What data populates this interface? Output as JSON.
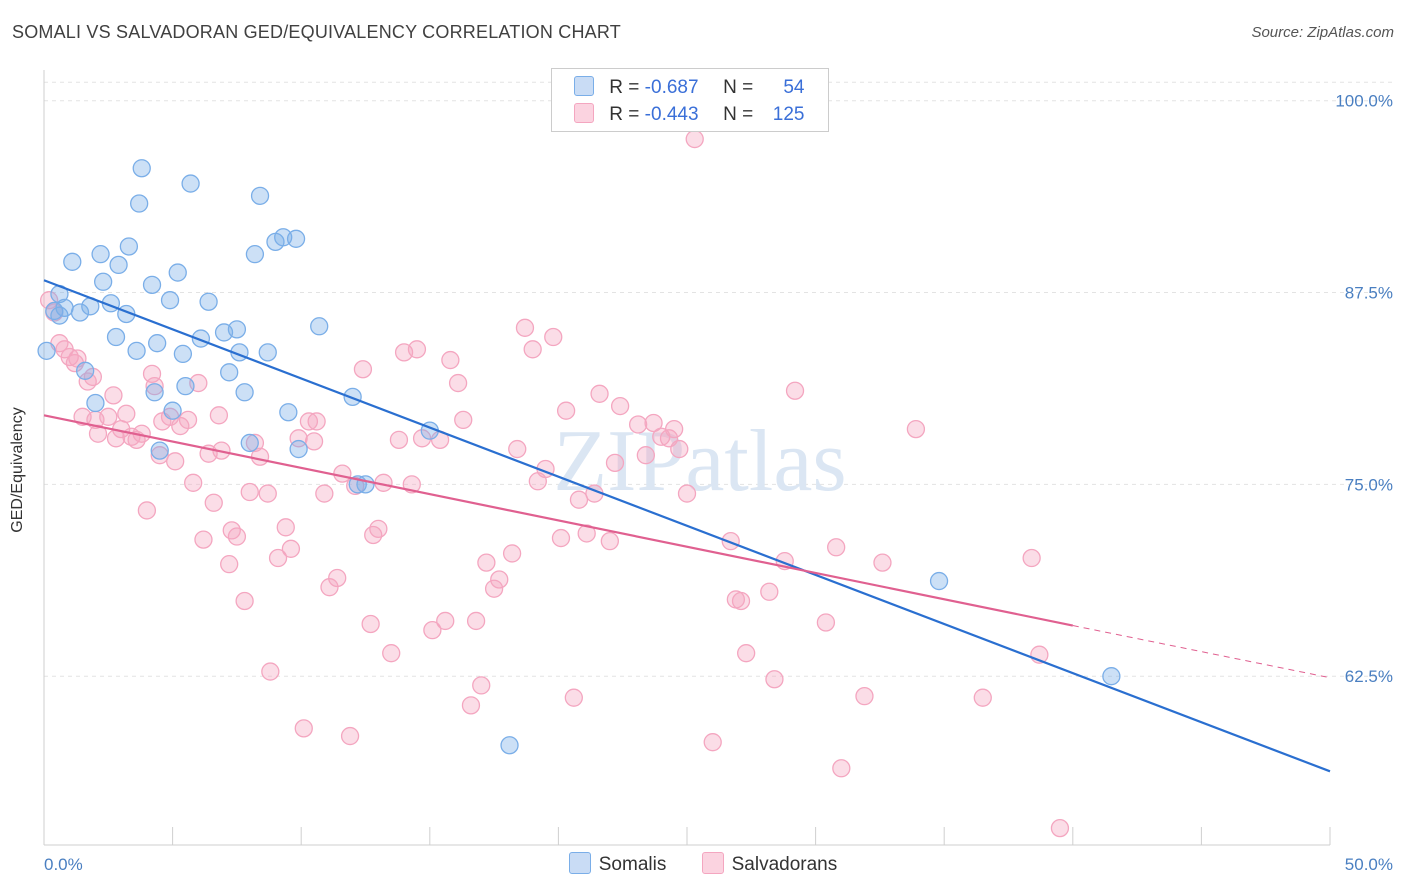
{
  "title": "SOMALI VS SALVADORAN GED/EQUIVALENCY CORRELATION CHART",
  "source": "Source: ZipAtlas.com",
  "watermark": "ZIPatlas",
  "colors": {
    "somalis": "#7aaee8",
    "somalis_line": "#2a6fd0",
    "salvadorans": "#f4a6c0",
    "salvadorans_line": "#e06090",
    "axis_text": "#4a7fc1"
  },
  "legend": [
    {
      "r_label": "R =",
      "r_value": "-0.687",
      "n_label": "N =",
      "n_value": "54"
    },
    {
      "r_label": "R =",
      "r_value": "-0.443",
      "n_label": "N =",
      "n_value": "125"
    }
  ],
  "chart_data": {
    "type": "scatter",
    "ylabel": "GED/Equivalency",
    "xlim": [
      0,
      50
    ],
    "ylim": [
      51.5,
      102
    ],
    "y_ticks": [
      {
        "value": 62.5,
        "label": "62.5%"
      },
      {
        "value": 75.0,
        "label": "75.0%"
      },
      {
        "value": 87.5,
        "label": "87.5%"
      },
      {
        "value": 100.0,
        "label": "100.0%"
      }
    ],
    "x_tick_labels": [
      {
        "value": 0,
        "label": "0.0%"
      },
      {
        "value": 50,
        "label": "50.0%"
      }
    ],
    "series": [
      {
        "name": "Somalis",
        "trend": {
          "x": [
            0,
            50
          ],
          "y": [
            88.3,
            56.3
          ]
        },
        "points": [
          [
            0.1,
            83.7
          ],
          [
            0.4,
            86.3
          ],
          [
            0.6,
            87.4
          ],
          [
            0.6,
            86.0
          ],
          [
            0.8,
            86.5
          ],
          [
            1.1,
            89.5
          ],
          [
            1.4,
            86.2
          ],
          [
            1.6,
            82.4
          ],
          [
            1.8,
            86.6
          ],
          [
            2.0,
            80.3
          ],
          [
            2.2,
            90.0
          ],
          [
            2.3,
            88.2
          ],
          [
            2.6,
            86.8
          ],
          [
            2.8,
            84.6
          ],
          [
            2.9,
            89.3
          ],
          [
            3.2,
            86.1
          ],
          [
            3.3,
            90.5
          ],
          [
            3.6,
            83.7
          ],
          [
            3.7,
            93.3
          ],
          [
            3.8,
            95.6
          ],
          [
            4.2,
            88.0
          ],
          [
            4.3,
            81.0
          ],
          [
            4.4,
            84.2
          ],
          [
            4.5,
            77.2
          ],
          [
            4.9,
            87.0
          ],
          [
            5.0,
            79.8
          ],
          [
            5.2,
            88.8
          ],
          [
            5.4,
            83.5
          ],
          [
            5.5,
            81.4
          ],
          [
            5.7,
            94.6
          ],
          [
            6.1,
            84.5
          ],
          [
            6.4,
            86.9
          ],
          [
            7.0,
            84.9
          ],
          [
            7.2,
            82.3
          ],
          [
            7.5,
            85.1
          ],
          [
            7.6,
            83.6
          ],
          [
            7.8,
            81.0
          ],
          [
            8.0,
            77.7
          ],
          [
            8.2,
            90.0
          ],
          [
            8.4,
            93.8
          ],
          [
            8.7,
            83.6
          ],
          [
            9.0,
            90.8
          ],
          [
            9.3,
            91.1
          ],
          [
            9.5,
            79.7
          ],
          [
            9.8,
            91.0
          ],
          [
            9.9,
            77.3
          ],
          [
            10.7,
            85.3
          ],
          [
            12.0,
            80.7
          ],
          [
            12.2,
            75.0
          ],
          [
            12.5,
            75.0
          ],
          [
            15.0,
            78.5
          ],
          [
            18.1,
            58.0
          ],
          [
            34.8,
            68.7
          ],
          [
            41.5,
            62.5
          ]
        ]
      },
      {
        "name": "Salvadorans",
        "trend": {
          "x": [
            0,
            40
          ],
          "y": [
            79.5,
            65.8
          ]
        },
        "trend_dashed": {
          "x": [
            40,
            50
          ],
          "y": [
            65.8,
            62.4
          ]
        },
        "points": [
          [
            0.2,
            87.0
          ],
          [
            0.4,
            86.2
          ],
          [
            0.6,
            84.2
          ],
          [
            0.8,
            83.8
          ],
          [
            1.0,
            83.3
          ],
          [
            1.2,
            82.9
          ],
          [
            1.3,
            83.2
          ],
          [
            1.5,
            79.4
          ],
          [
            1.7,
            81.7
          ],
          [
            1.9,
            82.0
          ],
          [
            2.0,
            79.2
          ],
          [
            2.1,
            78.3
          ],
          [
            2.5,
            79.4
          ],
          [
            2.7,
            80.8
          ],
          [
            2.8,
            78.0
          ],
          [
            3.0,
            78.6
          ],
          [
            3.2,
            79.6
          ],
          [
            3.4,
            78.1
          ],
          [
            3.6,
            77.9
          ],
          [
            3.8,
            78.3
          ],
          [
            4.0,
            73.3
          ],
          [
            4.2,
            82.2
          ],
          [
            4.3,
            81.4
          ],
          [
            4.5,
            76.9
          ],
          [
            4.6,
            79.1
          ],
          [
            4.9,
            79.4
          ],
          [
            5.1,
            76.5
          ],
          [
            5.3,
            78.8
          ],
          [
            5.6,
            79.2
          ],
          [
            5.8,
            75.1
          ],
          [
            6.0,
            81.6
          ],
          [
            6.2,
            71.4
          ],
          [
            6.4,
            77.0
          ],
          [
            6.6,
            73.8
          ],
          [
            6.8,
            79.5
          ],
          [
            6.9,
            77.2
          ],
          [
            7.2,
            69.8
          ],
          [
            7.3,
            72.0
          ],
          [
            7.5,
            71.6
          ],
          [
            7.8,
            67.4
          ],
          [
            8.0,
            74.5
          ],
          [
            8.2,
            77.7
          ],
          [
            8.4,
            76.8
          ],
          [
            8.7,
            74.4
          ],
          [
            8.8,
            62.8
          ],
          [
            9.1,
            70.2
          ],
          [
            9.4,
            72.2
          ],
          [
            9.6,
            70.8
          ],
          [
            9.9,
            78.0
          ],
          [
            10.1,
            59.1
          ],
          [
            10.3,
            79.1
          ],
          [
            10.5,
            77.8
          ],
          [
            10.6,
            79.1
          ],
          [
            10.9,
            74.4
          ],
          [
            11.1,
            68.3
          ],
          [
            11.4,
            68.9
          ],
          [
            11.6,
            75.7
          ],
          [
            11.9,
            58.6
          ],
          [
            12.1,
            74.9
          ],
          [
            12.4,
            82.5
          ],
          [
            12.7,
            65.9
          ],
          [
            12.8,
            71.7
          ],
          [
            13.0,
            72.1
          ],
          [
            13.2,
            75.1
          ],
          [
            13.5,
            64.0
          ],
          [
            13.8,
            77.9
          ],
          [
            14.0,
            83.6
          ],
          [
            14.3,
            75.0
          ],
          [
            14.5,
            83.8
          ],
          [
            14.7,
            78.0
          ],
          [
            15.1,
            65.5
          ],
          [
            15.4,
            77.9
          ],
          [
            15.6,
            66.1
          ],
          [
            15.8,
            83.1
          ],
          [
            16.1,
            81.6
          ],
          [
            16.3,
            79.2
          ],
          [
            16.6,
            60.6
          ],
          [
            16.8,
            66.1
          ],
          [
            17.0,
            61.9
          ],
          [
            17.2,
            69.9
          ],
          [
            17.5,
            68.2
          ],
          [
            17.7,
            68.8
          ],
          [
            18.2,
            70.5
          ],
          [
            18.4,
            77.3
          ],
          [
            18.7,
            85.2
          ],
          [
            19.0,
            83.8
          ],
          [
            19.2,
            75.2
          ],
          [
            19.5,
            76.0
          ],
          [
            19.8,
            84.6
          ],
          [
            20.1,
            71.5
          ],
          [
            20.3,
            79.8
          ],
          [
            20.6,
            61.1
          ],
          [
            20.8,
            74.0
          ],
          [
            21.1,
            71.8
          ],
          [
            21.4,
            74.4
          ],
          [
            21.6,
            80.9
          ],
          [
            22.0,
            71.3
          ],
          [
            22.2,
            76.4
          ],
          [
            22.4,
            80.1
          ],
          [
            23.1,
            78.9
          ],
          [
            23.4,
            76.9
          ],
          [
            23.7,
            79.0
          ],
          [
            24.0,
            78.1
          ],
          [
            24.3,
            78.0
          ],
          [
            24.5,
            78.6
          ],
          [
            24.7,
            77.3
          ],
          [
            25.0,
            74.4
          ],
          [
            25.3,
            97.5
          ],
          [
            26.0,
            58.2
          ],
          [
            26.7,
            71.3
          ],
          [
            26.9,
            67.5
          ],
          [
            27.1,
            67.4
          ],
          [
            27.3,
            64.0
          ],
          [
            28.2,
            68.0
          ],
          [
            28.4,
            62.3
          ],
          [
            28.8,
            70.0
          ],
          [
            29.2,
            81.1
          ],
          [
            30.4,
            66.0
          ],
          [
            30.8,
            70.9
          ],
          [
            31.0,
            56.5
          ],
          [
            31.9,
            61.2
          ],
          [
            32.6,
            69.9
          ],
          [
            33.9,
            78.6
          ],
          [
            36.5,
            61.1
          ],
          [
            38.4,
            70.2
          ],
          [
            38.7,
            63.9
          ],
          [
            39.5,
            52.6
          ]
        ]
      }
    ]
  }
}
